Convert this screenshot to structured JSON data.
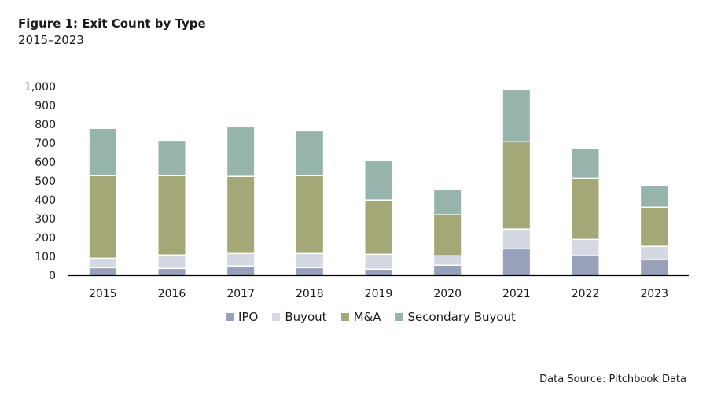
{
  "chart_data": {
    "type": "bar",
    "stacked": true,
    "title": "Figure 1: Exit Count by Type",
    "subtitle": "2015–2023",
    "xlabel": "",
    "ylabel": "",
    "categories": [
      "2015",
      "2016",
      "2017",
      "2018",
      "2019",
      "2020",
      "2021",
      "2022",
      "2023"
    ],
    "series": [
      {
        "name": "IPO",
        "color": "#98A1B9",
        "values": [
          37,
          33,
          46,
          37,
          29,
          50,
          137,
          100,
          79
        ]
      },
      {
        "name": "Buyout",
        "color": "#D3D8E2",
        "values": [
          50,
          71,
          66,
          75,
          79,
          50,
          105,
          87,
          71
        ]
      },
      {
        "name": "M&A",
        "color": "#A3A876",
        "values": [
          438,
          421,
          409,
          413,
          288,
          217,
          462,
          325,
          208
        ]
      },
      {
        "name": "Secondary Buyout",
        "color": "#97B4AC",
        "values": [
          250,
          187,
          262,
          237,
          208,
          137,
          275,
          155,
          113
        ]
      }
    ],
    "ylim": [
      0,
      1000
    ],
    "yticks": [
      0,
      100,
      200,
      300,
      400,
      500,
      600,
      700,
      800,
      900,
      1000
    ],
    "ytick_labels": [
      "0",
      "100",
      "200",
      "300",
      "400",
      "500",
      "600",
      "700",
      "800",
      "900",
      "1,000"
    ],
    "grid": false,
    "legend_position": "bottom-center",
    "source": "Data Source: Pitchbook Data"
  }
}
